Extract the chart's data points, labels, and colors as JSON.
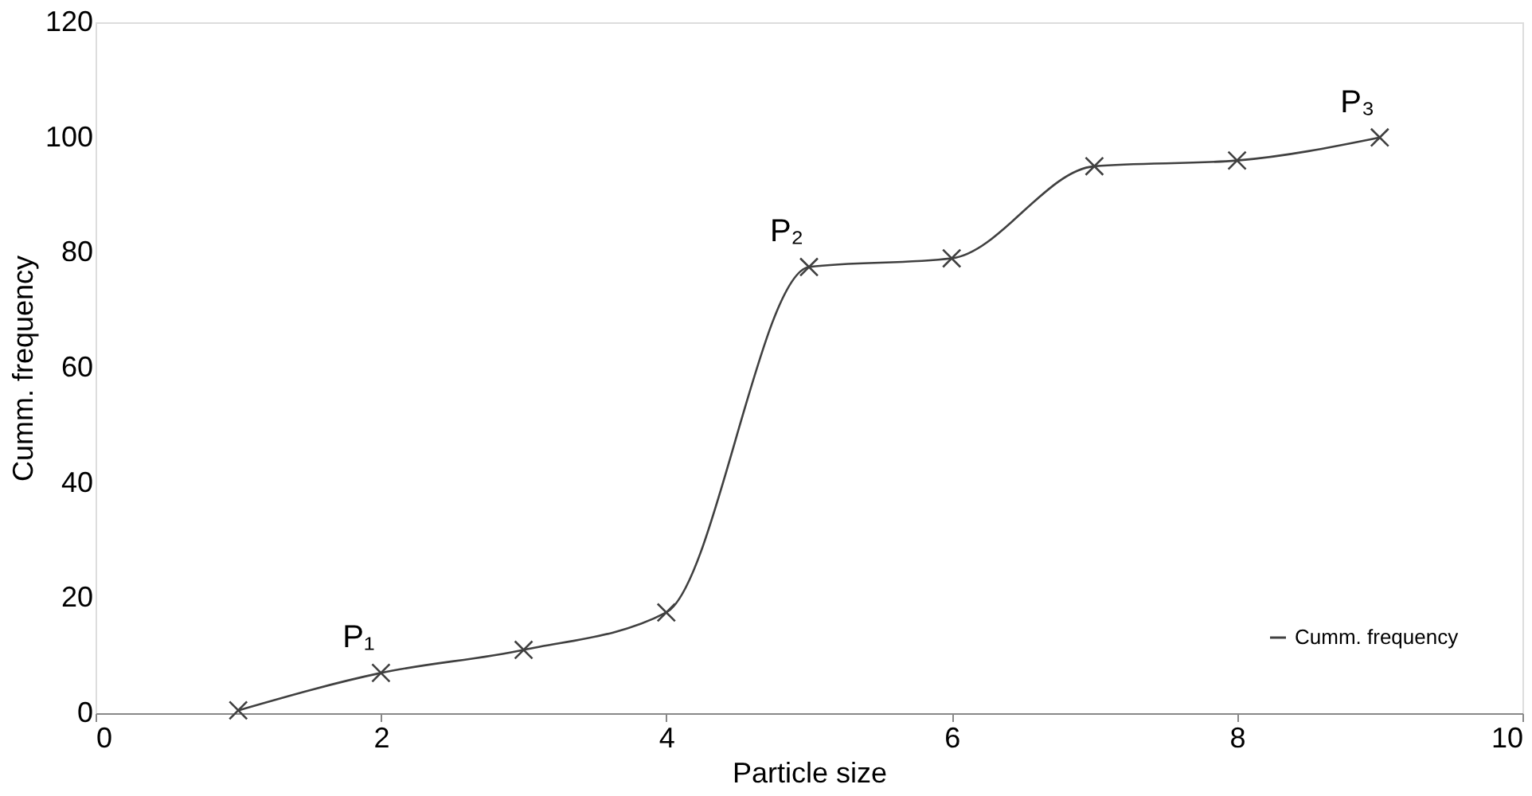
{
  "chart_data": {
    "type": "line",
    "xlabel": "Particle size",
    "ylabel": "Cumm. frequency",
    "x": [
      1,
      2,
      3,
      4,
      5,
      6,
      7,
      8,
      9
    ],
    "series": [
      {
        "name": "Cumm. frequency",
        "color": "#404040",
        "values": [
          0.5,
          7,
          11,
          17.5,
          77.5,
          79,
          95,
          96,
          100
        ]
      }
    ],
    "xlim": [
      0,
      10
    ],
    "xticks": [
      0,
      2,
      4,
      6,
      8,
      10
    ],
    "ylim": [
      0,
      120
    ],
    "yticks": [
      0,
      20,
      40,
      60,
      80,
      100,
      120
    ],
    "annotations": [
      {
        "text": "P₁",
        "x": 2,
        "y": 7
      },
      {
        "text": "P₂",
        "x": 5,
        "y": 77.5
      },
      {
        "text": "P₃",
        "x": 9,
        "y": 100
      }
    ],
    "grid": false,
    "legend": "bottom right",
    "marker": "cross",
    "line_style": "solid"
  }
}
